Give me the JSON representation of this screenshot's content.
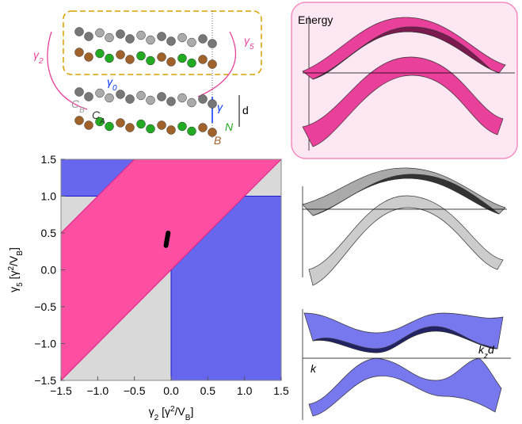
{
  "chart_data": {
    "type": "region",
    "xlabel": [
      "γ",
      "2",
      " [γ",
      "2",
      "/V",
      "B",
      "]"
    ],
    "ylabel": [
      "γ",
      "5",
      " [γ",
      "2",
      "/V",
      "B",
      "]"
    ],
    "xlim": [
      -1.5,
      1.5
    ],
    "ylim": [
      -1.5,
      1.5
    ],
    "xticks": [
      {
        "value": -1.5,
        "label": "−1.5"
      },
      {
        "value": -1,
        "label": "−1.0"
      },
      {
        "value": -0.5,
        "label": "−0.5"
      },
      {
        "value": 0,
        "label": "0.0"
      },
      0.5,
      {
        "value": 1,
        "label": "1.0"
      },
      1.5
    ],
    "yticks": [
      {
        "value": -1.5,
        "label": "−1.5"
      },
      {
        "value": -1,
        "label": "−1.0"
      },
      {
        "value": -0.5,
        "label": "−0.5"
      },
      {
        "value": 0,
        "label": "0.0"
      },
      0.5,
      {
        "value": 1,
        "label": "1.0"
      },
      1.5
    ],
    "series": [
      {
        "color": "#d9d9d9",
        "x": [
          -1.5,
          1.5,
          1.5,
          -1.5
        ],
        "values": [
          -1.5,
          -1.5,
          1.5,
          1.5
        ]
      },
      {
        "color": "#6666ee",
        "x": [
          -1.5,
          0,
          0,
          -1.5
        ],
        "values": [
          1,
          1,
          1.5,
          1.5
        ]
      },
      {
        "color": "#6666ee",
        "x": [
          0,
          1.5,
          1.5,
          0
        ],
        "values": [
          -1.5,
          -1.5,
          1,
          1
        ]
      },
      {
        "color": "#ff4fa3",
        "x": [
          -1.5,
          1.5,
          -0.5,
          -1.5
        ],
        "values": [
          -1.5,
          1.5,
          1.5,
          0.5
        ]
      },
      {
        "color": "#000000",
        "line": true,
        "x": [
          -0.07,
          -0.04
        ],
        "values": [
          0.33,
          0.5
        ]
      }
    ],
    "annotations": [
      [
        "Energy"
      ],
      [
        "k",
        "z",
        "d"
      ],
      [
        "k"
      ],
      [
        "d"
      ],
      [
        "γ",
        "2"
      ],
      [
        "γ",
        "5"
      ],
      [
        "γ",
        "0"
      ],
      [
        "γ"
      ],
      [
        "C",
        "B"
      ],
      [
        "C",
        "A"
      ],
      [
        "N"
      ],
      [
        "B"
      ]
    ]
  }
}
